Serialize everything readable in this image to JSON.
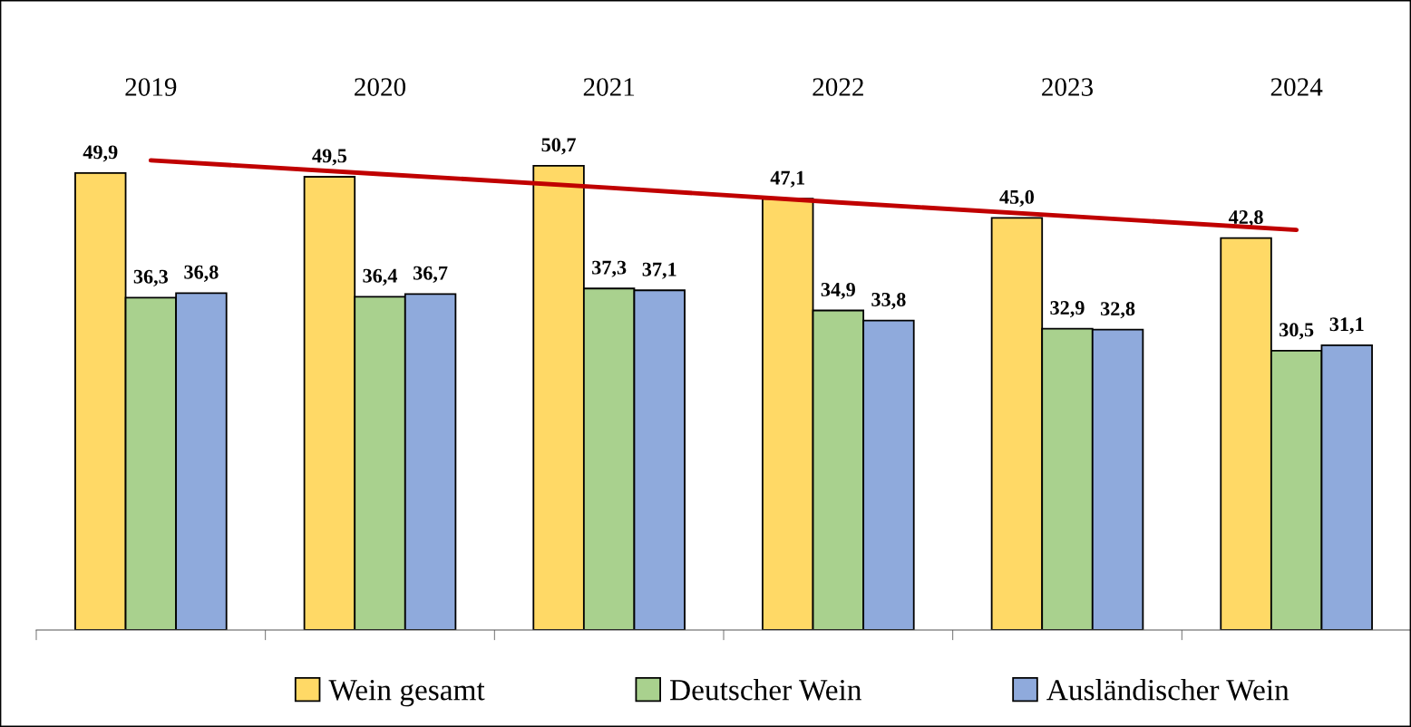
{
  "chart_data": {
    "type": "bar",
    "categories": [
      "2019",
      "2020",
      "2021",
      "2022",
      "2023",
      "2024"
    ],
    "series": [
      {
        "name": "Wein gesamt",
        "color": "#ffd966",
        "values": [
          49.9,
          49.5,
          50.7,
          47.1,
          45.0,
          42.8
        ],
        "value_labels": [
          "49,9",
          "49,5",
          "50,7",
          "47,1",
          "45,0",
          "42,8"
        ]
      },
      {
        "name": "Deutscher Wein",
        "color": "#a9d18e",
        "values": [
          36.3,
          36.4,
          37.3,
          34.9,
          32.9,
          30.5
        ],
        "value_labels": [
          "36,3",
          "36,4",
          "37,3",
          "34,9",
          "32,9",
          "30,5"
        ]
      },
      {
        "name": "Ausländischer Wein",
        "color": "#8faadc",
        "values": [
          36.8,
          36.7,
          37.1,
          33.8,
          32.8,
          31.1
        ],
        "value_labels": [
          "36,8",
          "36,7",
          "37,1",
          "33,8",
          "32,8",
          "31,1"
        ]
      },
      {
        "type": "line",
        "color": "#c00000",
        "values": [
          51.3,
          49.8,
          48.3,
          46.7,
          45.2,
          43.7
        ],
        "value_labels": [
          null,
          null,
          null,
          null,
          null,
          null
        ]
      }
    ],
    "tick_labels": "x",
    "legend": "bottom",
    "grid": false
  }
}
